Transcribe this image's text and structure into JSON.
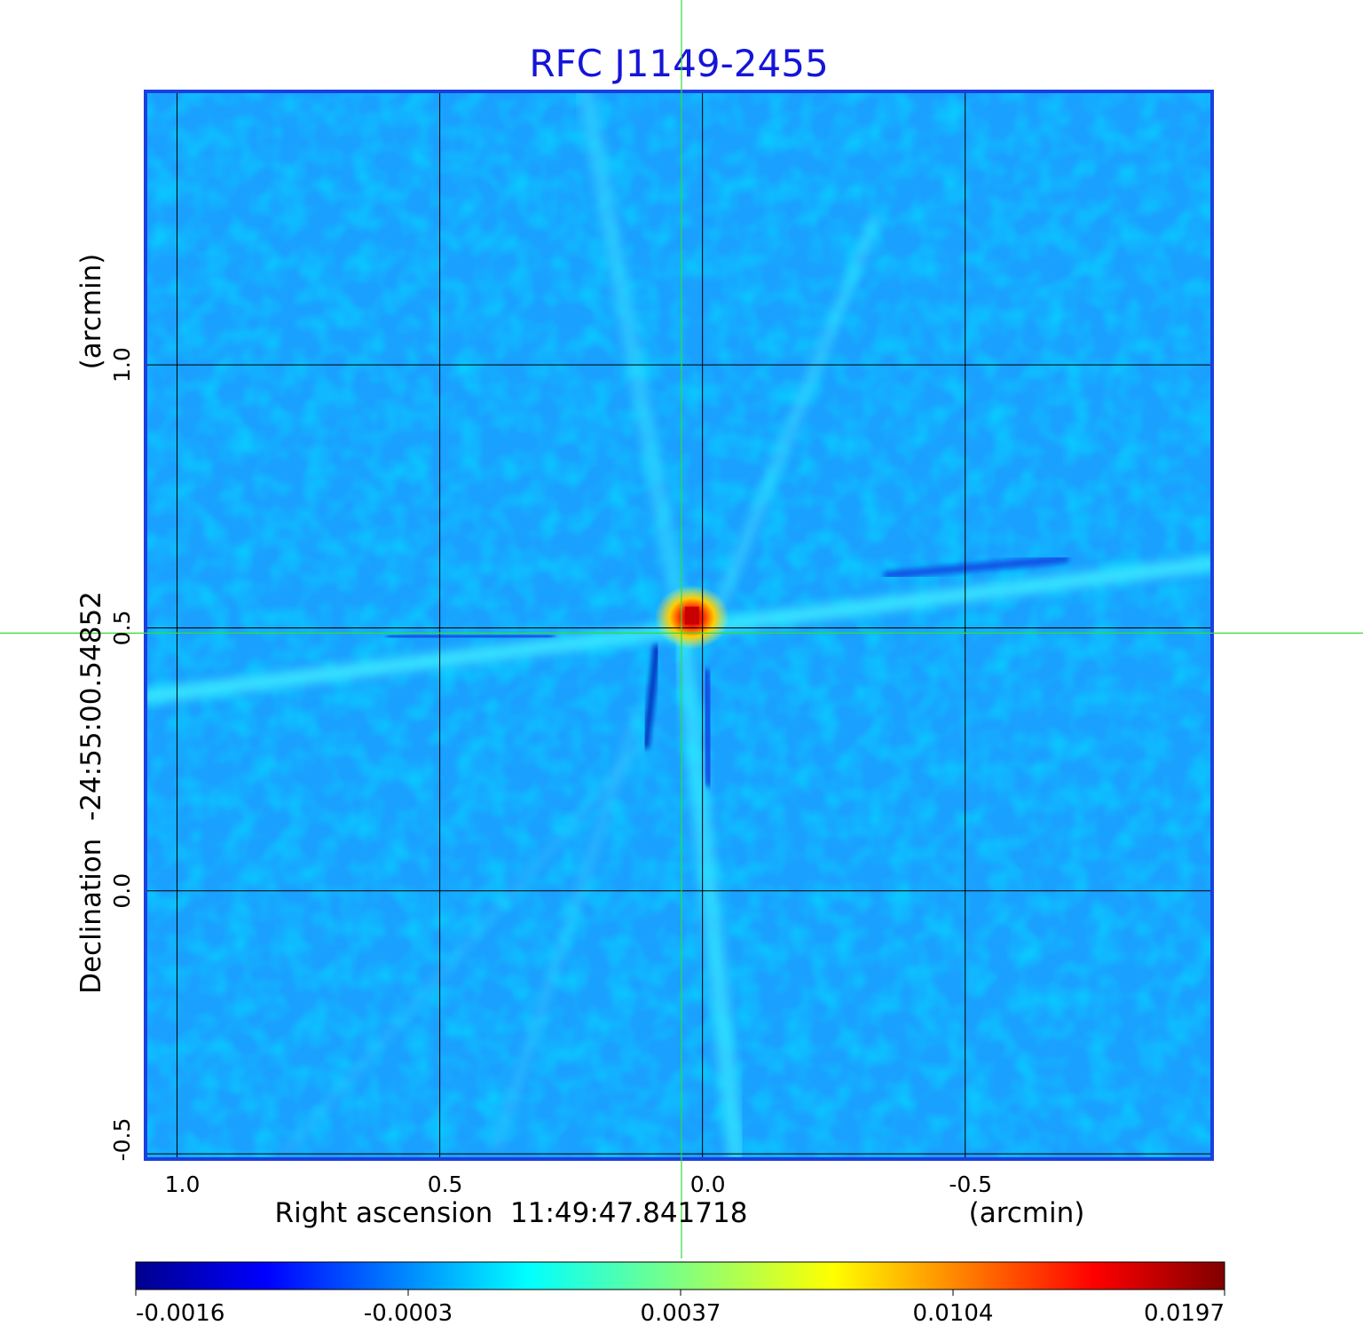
{
  "chart_data": {
    "type": "heatmap",
    "title": "RFC J1149-2455",
    "xlabel": "Right ascension  11:49:47.841718",
    "xunit": "(arcmin)",
    "ylabel": "Declination  -24:55:00.54852",
    "yunit": "(arcmin)",
    "xlim": [
      1.06,
      -0.97
    ],
    "ylim": [
      -0.51,
      1.52
    ],
    "x_ticks": [
      {
        "value": 1.0,
        "label": "1.0"
      },
      {
        "value": 0.5,
        "label": "0.5"
      },
      {
        "value": 0.0,
        "label": "0.0"
      },
      {
        "value": -0.5,
        "label": "-0.5"
      }
    ],
    "y_ticks": [
      {
        "value": -0.5,
        "label": "-0.5"
      },
      {
        "value": 0.0,
        "label": "0.0"
      },
      {
        "value": 0.5,
        "label": "0.5"
      },
      {
        "value": 1.0,
        "label": "1.0"
      }
    ],
    "grid": true,
    "crosshair": {
      "x": 0.04,
      "y": 0.49
    },
    "peak": {
      "x": 0.02,
      "y": 0.52
    },
    "colormap": "jet",
    "colorbar": {
      "min": -0.0016,
      "max": 0.0197,
      "ticks": [
        {
          "value": -0.0016,
          "label": "-0.0016"
        },
        {
          "value": -0.0003,
          "label": "-0.0003"
        },
        {
          "value": 0.0037,
          "label": "0.0037"
        },
        {
          "value": 0.0104,
          "label": "0.0104"
        },
        {
          "value": 0.0197,
          "label": "0.0197"
        }
      ]
    },
    "colors": {
      "title": "#1515d8",
      "frame": "#1a3fe0",
      "crosshair": "#33dd33",
      "background": "#1aa0ff"
    }
  }
}
